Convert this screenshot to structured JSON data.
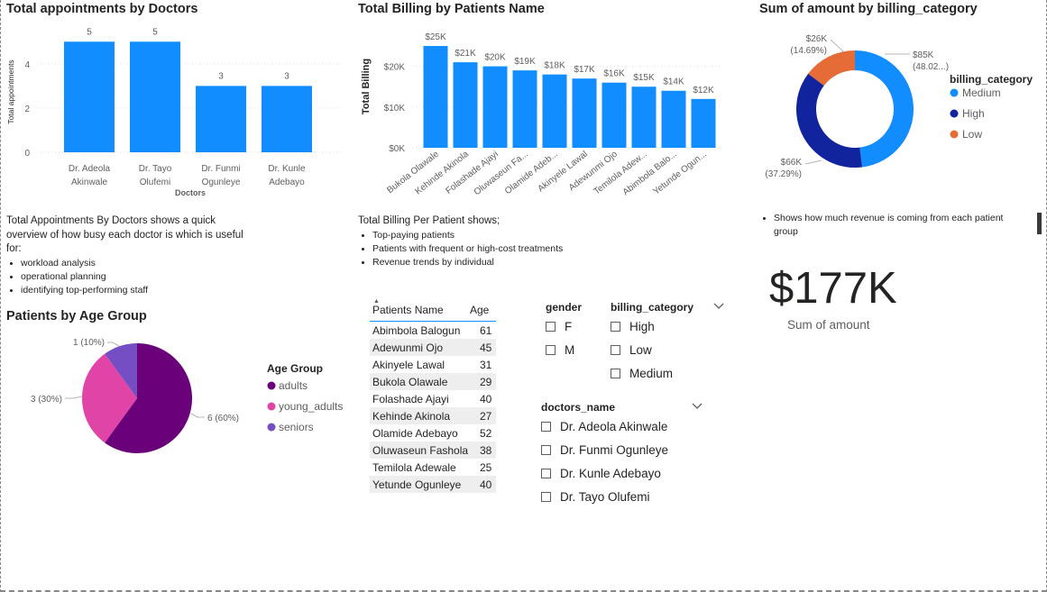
{
  "colors": {
    "bar": "#118DFF",
    "medium": "#118DFF",
    "high": "#12239E",
    "low": "#E66C37",
    "adults": "#6B007B",
    "young_adults": "#E044A7",
    "seniors": "#744EC2"
  },
  "appointments_chart": {
    "title": "Total appointments by Doctors",
    "chart_data": {
      "type": "bar",
      "title": "Total appointments by Doctors",
      "xlabel": "Doctors",
      "ylabel": "Total appointments",
      "categories": [
        [
          "Dr. Adeola",
          "Akinwale"
        ],
        [
          "Dr. Tayo",
          "Olufemi"
        ],
        [
          "Dr. Funmi",
          "Ogunleye"
        ],
        [
          "Dr. Kunle",
          "Adebayo"
        ]
      ],
      "values": [
        5,
        5,
        3,
        3
      ],
      "data_labels": [
        "5",
        "5",
        "3",
        "3"
      ],
      "yticks": [
        "0",
        "2",
        "4"
      ],
      "ylim": [
        0,
        5.5
      ]
    }
  },
  "billing_chart": {
    "title": "Total Billing by Patients Name",
    "chart_data": {
      "type": "bar",
      "title": "Total Billing by Patients Name",
      "xlabel": "",
      "ylabel": "Total Billing",
      "categories": [
        "Bukola Olawale",
        "Kehinde Akinola",
        "Folashade Ajayi",
        "Oluwaseun Fa...",
        "Olamide Adeb...",
        "Akinyele Lawal",
        "Adewunmi Ojo",
        "Temilola Adew...",
        "Abimbola Balo...",
        "Yetunde Ogun..."
      ],
      "values": [
        25,
        21,
        20,
        19,
        18,
        17,
        16,
        15,
        14,
        12
      ],
      "data_labels": [
        "$25K",
        "$21K",
        "$20K",
        "$19K",
        "$18K",
        "$17K",
        "$16K",
        "$15K",
        "$14K",
        "$12K"
      ],
      "yticks": [
        "$0K",
        "$10K",
        "$20K"
      ],
      "ylim": [
        0,
        27
      ]
    }
  },
  "donut_chart": {
    "title": "Sum of amount by billing_category",
    "chart_data": {
      "type": "pie",
      "title": "Sum of amount by billing_category",
      "legend_title": "billing_category",
      "legend_position": "right",
      "slices": [
        {
          "name": "Medium",
          "value": 85,
          "label": "$85K",
          "pct": "(48.02...)"
        },
        {
          "name": "High",
          "value": 66,
          "label": "$66K",
          "pct": "(37.29%)"
        },
        {
          "name": "Low",
          "value": 26,
          "label": "$26K",
          "pct": "(14.69%)"
        }
      ]
    }
  },
  "age_chart": {
    "title": "Patients by Age Group",
    "chart_data": {
      "type": "pie",
      "title": "Patients by Age Group",
      "legend_title": "Age Group",
      "legend_position": "right",
      "slices": [
        {
          "name": "adults",
          "value": 6,
          "label": "6 (60%)"
        },
        {
          "name": "young_adults",
          "value": 3,
          "label": "3 (30%)"
        },
        {
          "name": "seniors",
          "value": 1,
          "label": "1 (10%)"
        }
      ]
    }
  },
  "notes": {
    "appointments": {
      "intro": "Total Appointments By Doctors shows a quick overview of how busy each doctor is which is useful for:",
      "bullets": [
        "workload analysis",
        "operational planning",
        "identifying top-performing staff"
      ]
    },
    "billing": {
      "intro": "Total Billing Per Patient shows;",
      "bullets": [
        "Top-paying patients",
        "Patients with frequent or high-cost treatments",
        "Revenue trends by individual"
      ]
    },
    "revenue": {
      "bullets": [
        "Shows how much revenue is coming from each patient group"
      ]
    }
  },
  "card": {
    "value": "$177K",
    "label": "Sum of amount"
  },
  "table": {
    "headers": [
      "Patients Name",
      "Age"
    ],
    "rows": [
      [
        "Abimbola Balogun",
        "61"
      ],
      [
        "Adewunmi Ojo",
        "45"
      ],
      [
        "Akinyele Lawal",
        "31"
      ],
      [
        "Bukola Olawale",
        "29"
      ],
      [
        "Folashade Ajayi",
        "40"
      ],
      [
        "Kehinde Akinola",
        "27"
      ],
      [
        "Olamide Adebayo",
        "52"
      ],
      [
        "Oluwaseun Fashola",
        "38"
      ],
      [
        "Temilola Adewale",
        "25"
      ],
      [
        "Yetunde Ogunleye",
        "40"
      ]
    ]
  },
  "slicers": {
    "gender": {
      "title": "gender",
      "items": [
        "F",
        "M"
      ]
    },
    "billing_category": {
      "title": "billing_category",
      "items": [
        "High",
        "Low",
        "Medium"
      ]
    },
    "doctors_name": {
      "title": "doctors_name",
      "items": [
        "Dr. Adeola Akinwale",
        "Dr. Funmi Ogunleye",
        "Dr. Kunle Adebayo",
        "Dr. Tayo Olufemi"
      ]
    }
  }
}
